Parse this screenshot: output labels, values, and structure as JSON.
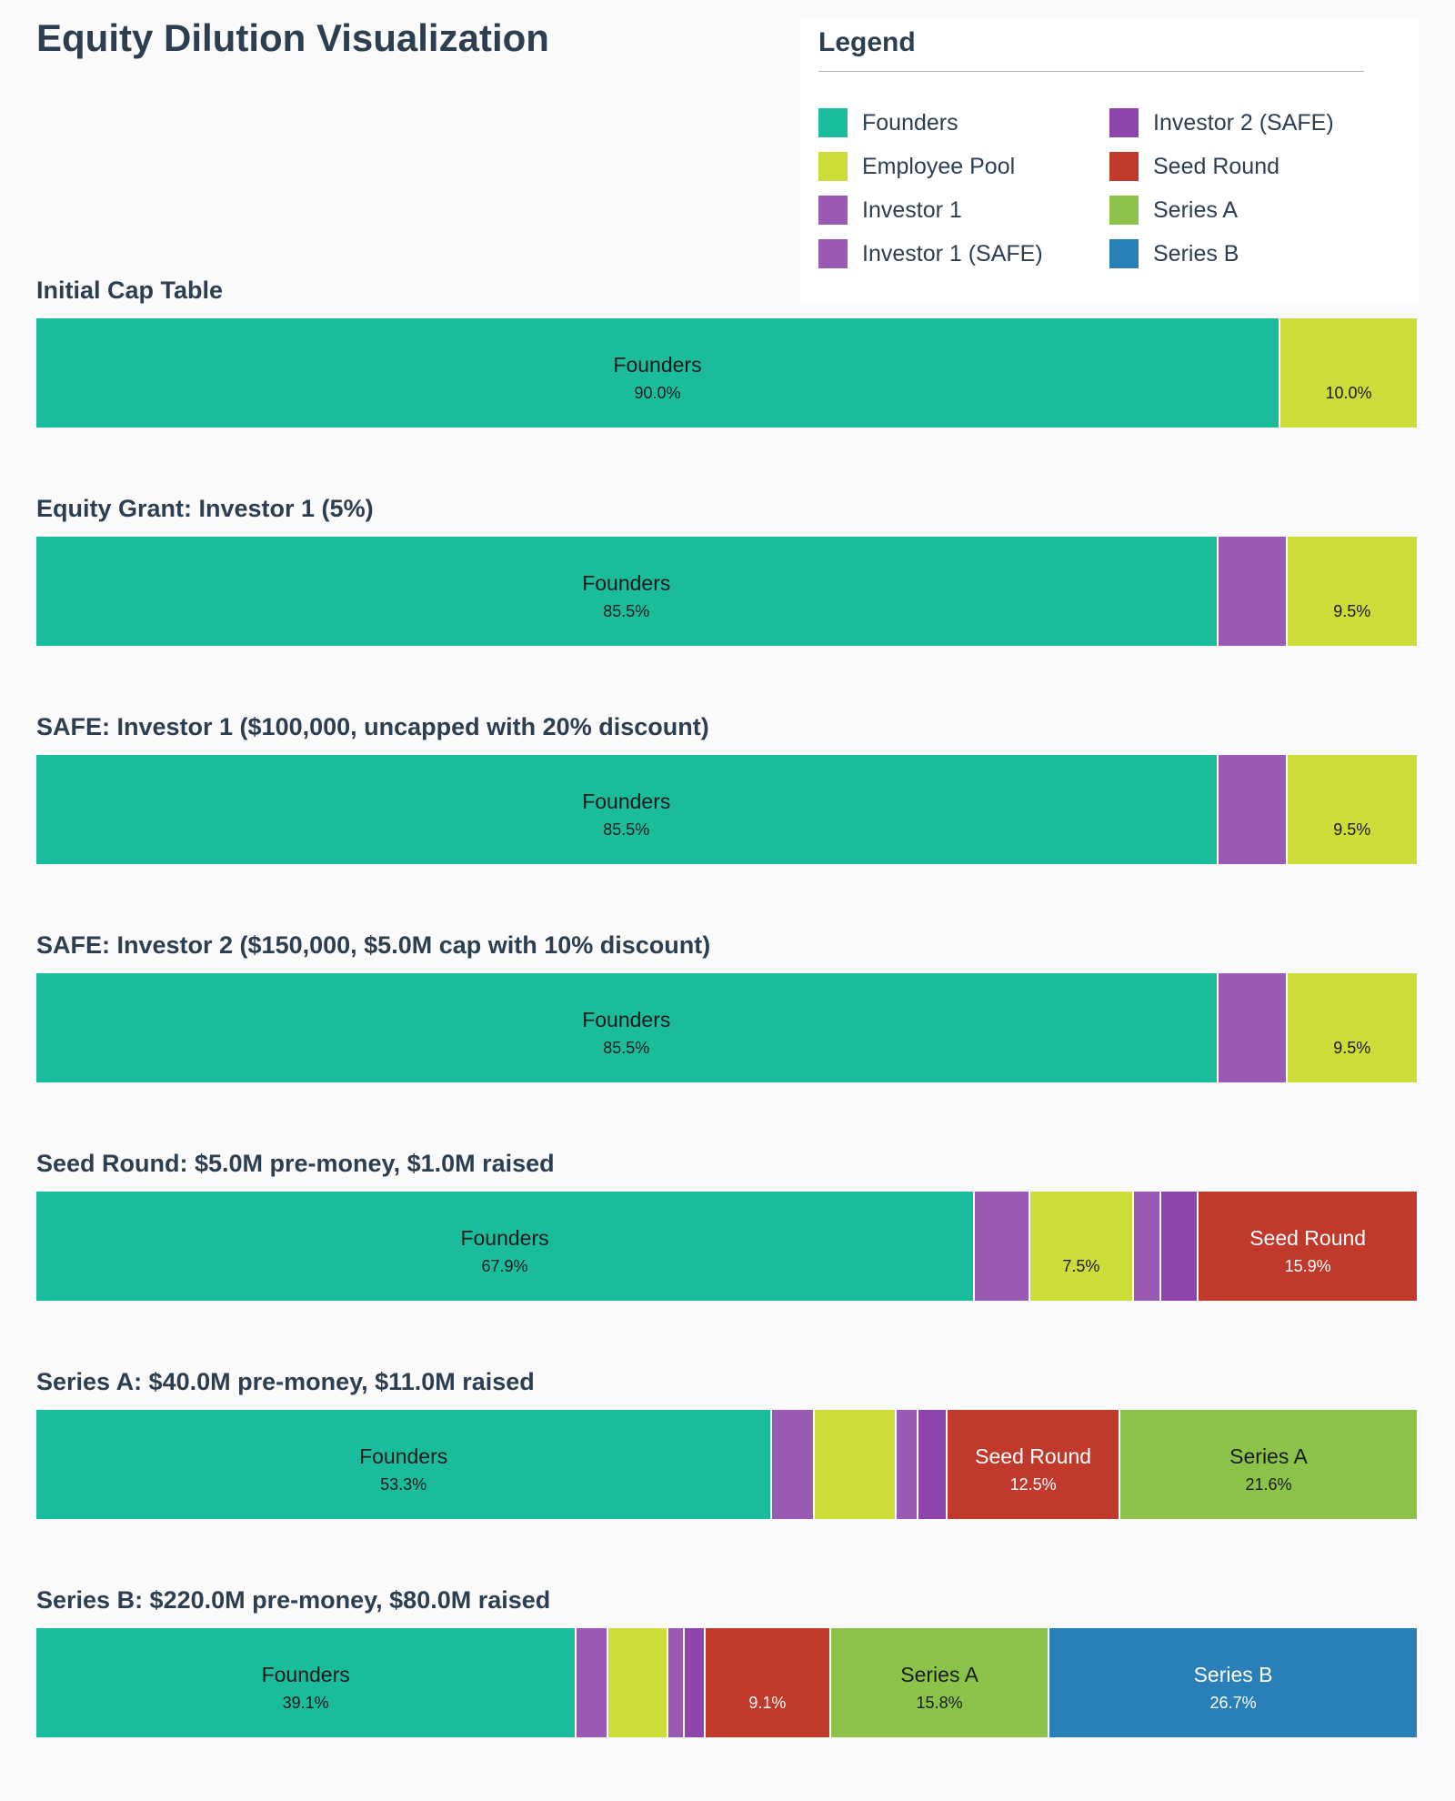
{
  "title": "Equity Dilution Visualization",
  "legend": {
    "title": "Legend",
    "items": [
      {
        "label": "Founders",
        "color": "#1abc9c"
      },
      {
        "label": "Employee Pool",
        "color": "#cddc39"
      },
      {
        "label": "Investor 1",
        "color": "#9b59b6"
      },
      {
        "label": "Investor 1 (SAFE)",
        "color": "#9b59b6"
      },
      {
        "label": "Investor 2 (SAFE)",
        "color": "#8e44ad"
      },
      {
        "label": "Seed Round",
        "color": "#c0392b"
      },
      {
        "label": "Series A",
        "color": "#8bc34a"
      },
      {
        "label": "Series B",
        "color": "#2980b9"
      }
    ]
  },
  "chart_data": {
    "type": "bar",
    "orientation": "horizontal-stacked-100",
    "series_colors": {
      "Founders": "#1abc9c",
      "Investor 1": "#9b59b6",
      "Employee Pool": "#cddc39",
      "Investor 1 (SAFE)": "#9b59b6",
      "Investor 2 (SAFE)": "#8e44ad",
      "Seed Round": "#c0392b",
      "Series A": "#8bc34a",
      "Series B": "#2980b9"
    },
    "rounds": [
      {
        "title": "Initial Cap Table",
        "segments": [
          {
            "holder": "Founders",
            "value": 90.0,
            "name_label": "Founders",
            "pct_label": "90.0%"
          },
          {
            "holder": "Employee Pool",
            "value": 10.0,
            "name_label": "",
            "pct_label": "10.0%"
          }
        ]
      },
      {
        "title": "Equity Grant: Investor 1 (5%)",
        "segments": [
          {
            "holder": "Founders",
            "value": 85.5,
            "name_label": "Founders",
            "pct_label": "85.5%"
          },
          {
            "holder": "Investor 1",
            "value": 5.0,
            "name_label": "",
            "pct_label": ""
          },
          {
            "holder": "Employee Pool",
            "value": 9.5,
            "name_label": "",
            "pct_label": "9.5%"
          }
        ]
      },
      {
        "title": "SAFE: Investor 1 ($100,000, uncapped with 20% discount)",
        "segments": [
          {
            "holder": "Founders",
            "value": 85.5,
            "name_label": "Founders",
            "pct_label": "85.5%"
          },
          {
            "holder": "Investor 1",
            "value": 5.0,
            "name_label": "",
            "pct_label": ""
          },
          {
            "holder": "Employee Pool",
            "value": 9.5,
            "name_label": "",
            "pct_label": "9.5%"
          }
        ]
      },
      {
        "title": "SAFE: Investor 2 ($150,000, $5.0M cap with 10% discount)",
        "segments": [
          {
            "holder": "Founders",
            "value": 85.5,
            "name_label": "Founders",
            "pct_label": "85.5%"
          },
          {
            "holder": "Investor 1",
            "value": 5.0,
            "name_label": "",
            "pct_label": ""
          },
          {
            "holder": "Employee Pool",
            "value": 9.5,
            "name_label": "",
            "pct_label": "9.5%"
          }
        ]
      },
      {
        "title": "Seed Round: $5.0M pre-money, $1.0M raised",
        "segments": [
          {
            "holder": "Founders",
            "value": 67.9,
            "name_label": "Founders",
            "pct_label": "67.9%"
          },
          {
            "holder": "Investor 1",
            "value": 4.0,
            "name_label": "",
            "pct_label": ""
          },
          {
            "holder": "Employee Pool",
            "value": 7.5,
            "name_label": "",
            "pct_label": "7.5%"
          },
          {
            "holder": "Investor 1 (SAFE)",
            "value": 2.0,
            "name_label": "",
            "pct_label": ""
          },
          {
            "holder": "Investor 2 (SAFE)",
            "value": 2.7,
            "name_label": "",
            "pct_label": ""
          },
          {
            "holder": "Seed Round",
            "value": 15.9,
            "name_label": "Seed Round",
            "pct_label": "15.9%"
          }
        ]
      },
      {
        "title": "Series A: $40.0M pre-money, $11.0M raised",
        "segments": [
          {
            "holder": "Founders",
            "value": 53.3,
            "name_label": "Founders",
            "pct_label": "53.3%"
          },
          {
            "holder": "Investor 1",
            "value": 3.1,
            "name_label": "",
            "pct_label": ""
          },
          {
            "holder": "Employee Pool",
            "value": 5.9,
            "name_label": "",
            "pct_label": ""
          },
          {
            "holder": "Investor 1 (SAFE)",
            "value": 1.6,
            "name_label": "",
            "pct_label": ""
          },
          {
            "holder": "Investor 2 (SAFE)",
            "value": 2.1,
            "name_label": "",
            "pct_label": ""
          },
          {
            "holder": "Seed Round",
            "value": 12.5,
            "name_label": "Seed Round",
            "pct_label": "12.5%"
          },
          {
            "holder": "Series A",
            "value": 21.6,
            "name_label": "Series A",
            "pct_label": "21.6%"
          }
        ]
      },
      {
        "title": "Series B: $220.0M pre-money, $80.0M raised",
        "segments": [
          {
            "holder": "Founders",
            "value": 39.1,
            "name_label": "Founders",
            "pct_label": "39.1%"
          },
          {
            "holder": "Investor 1",
            "value": 2.3,
            "name_label": "",
            "pct_label": ""
          },
          {
            "holder": "Employee Pool",
            "value": 4.3,
            "name_label": "",
            "pct_label": ""
          },
          {
            "holder": "Investor 1 (SAFE)",
            "value": 1.2,
            "name_label": "",
            "pct_label": ""
          },
          {
            "holder": "Investor 2 (SAFE)",
            "value": 1.5,
            "name_label": "",
            "pct_label": ""
          },
          {
            "holder": "Seed Round",
            "value": 9.1,
            "name_label": "",
            "pct_label": "9.1%"
          },
          {
            "holder": "Series A",
            "value": 15.8,
            "name_label": "Series A",
            "pct_label": "15.8%"
          },
          {
            "holder": "Series B",
            "value": 26.7,
            "name_label": "Series B",
            "pct_label": "26.7%"
          }
        ]
      }
    ]
  }
}
